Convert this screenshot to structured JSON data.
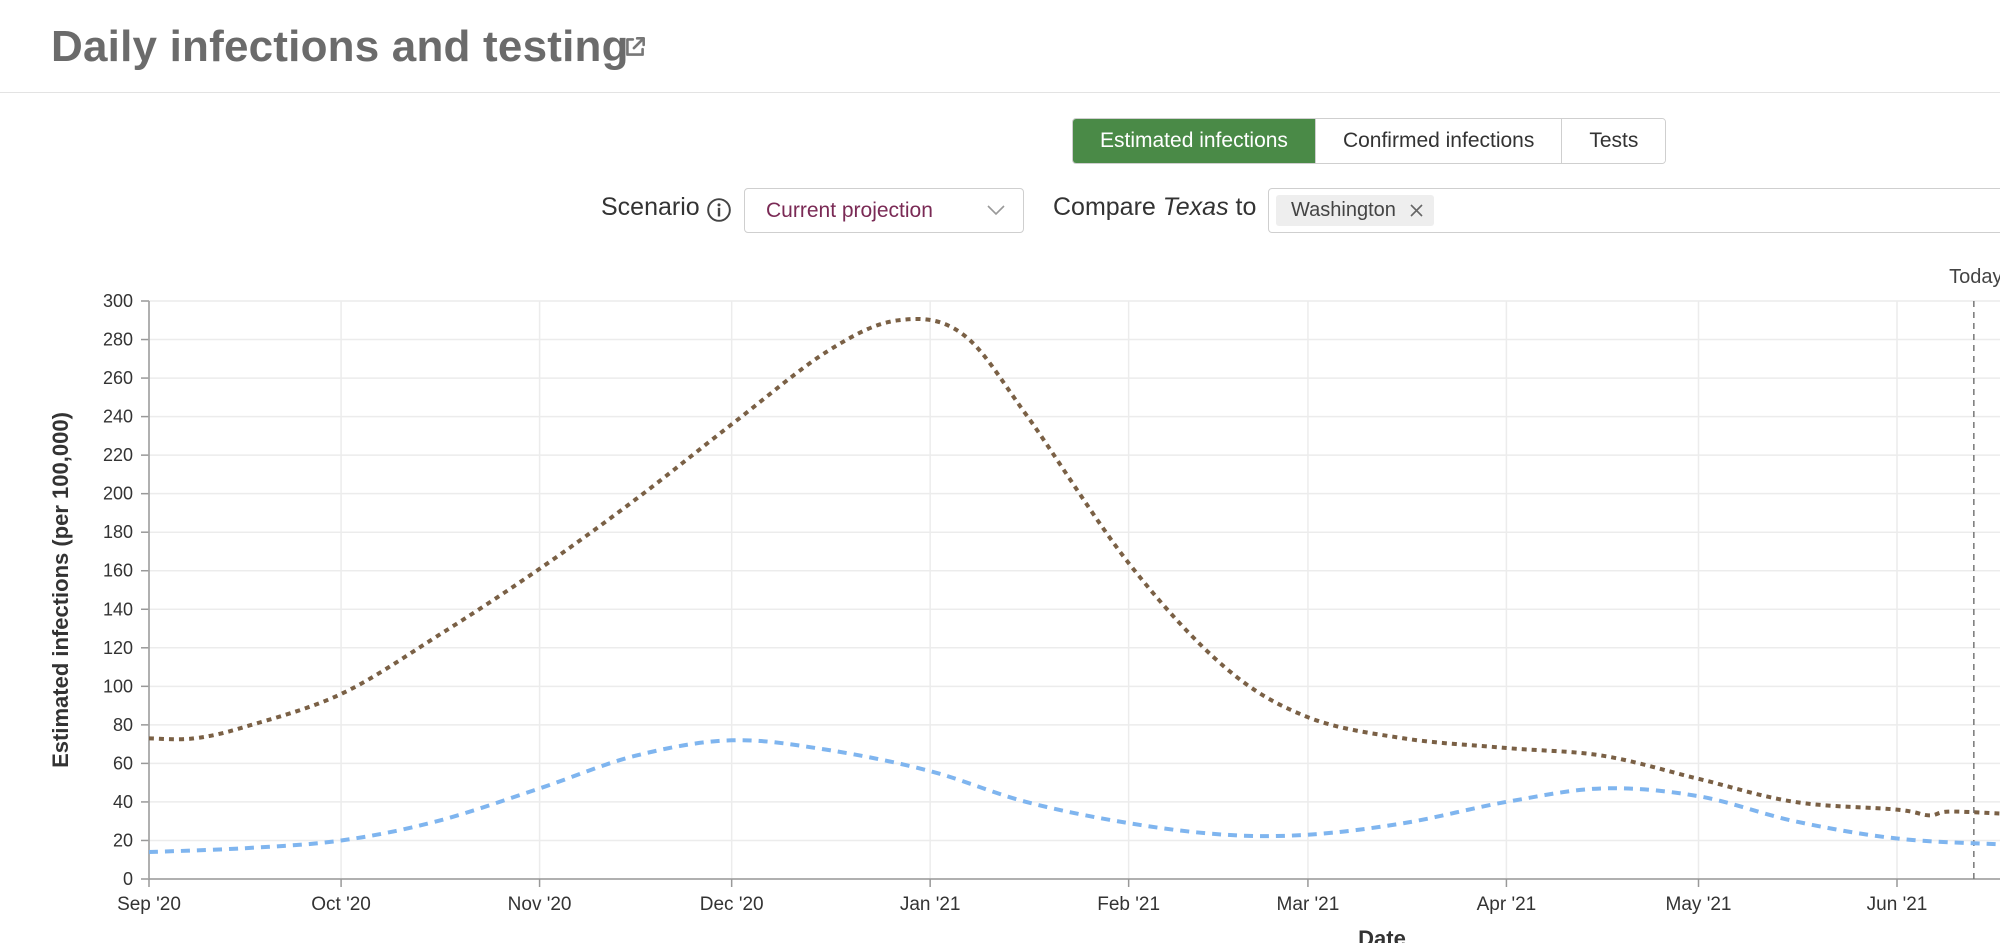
{
  "header": {
    "title": "Daily infections and testing"
  },
  "tabs": [
    {
      "label": "Estimated infections",
      "active": true
    },
    {
      "label": "Confirmed infections",
      "active": false
    },
    {
      "label": "Tests",
      "active": false
    }
  ],
  "controls": {
    "scenario_label": "Scenario",
    "scenario_value": "Current projection",
    "compare_prefix": "Compare",
    "compare_location": "Texas",
    "compare_suffix": "to",
    "compare_chips": [
      "Washington"
    ]
  },
  "icons": {
    "title_link": "external-link-icon",
    "scenario_info": "info-icon",
    "select_chevron": "chevron-down-icon",
    "chip_remove": "close-icon"
  },
  "chart_data": {
    "type": "line",
    "title": "",
    "xlabel": "Date",
    "ylabel": "Estimated infections (per 100,000)",
    "ylim": [
      0,
      300
    ],
    "yticks": [
      0,
      20,
      40,
      60,
      80,
      100,
      120,
      140,
      160,
      180,
      200,
      220,
      240,
      260,
      280,
      300
    ],
    "xlim": [
      "2020-09-01",
      "2021-06-21"
    ],
    "xticks": [
      {
        "date": "2020-09-01",
        "label": "Sep '20"
      },
      {
        "date": "2020-10-01",
        "label": "Oct '20"
      },
      {
        "date": "2020-11-01",
        "label": "Nov '20"
      },
      {
        "date": "2020-12-01",
        "label": "Dec '20"
      },
      {
        "date": "2021-01-01",
        "label": "Jan '21"
      },
      {
        "date": "2021-02-01",
        "label": "Feb '21"
      },
      {
        "date": "2021-03-01",
        "label": "Mar '21"
      },
      {
        "date": "2021-04-01",
        "label": "Apr '21"
      },
      {
        "date": "2021-05-01",
        "label": "May '21"
      },
      {
        "date": "2021-06-01",
        "label": "Jun '21"
      }
    ],
    "grid": true,
    "legend": "none",
    "annotations": [
      {
        "label": "Today",
        "x": "2021-06-13"
      }
    ],
    "series": [
      {
        "color": "#7a6045",
        "style": "dotted",
        "points": [
          {
            "x": "2020-09-01",
            "y": 73
          },
          {
            "x": "2020-09-08",
            "y": 73
          },
          {
            "x": "2020-09-16",
            "y": 79
          },
          {
            "x": "2020-10-01",
            "y": 96
          },
          {
            "x": "2020-10-16",
            "y": 126
          },
          {
            "x": "2020-11-01",
            "y": 161
          },
          {
            "x": "2020-11-16",
            "y": 197
          },
          {
            "x": "2020-12-01",
            "y": 236
          },
          {
            "x": "2020-12-16",
            "y": 274
          },
          {
            "x": "2020-12-27",
            "y": 290
          },
          {
            "x": "2021-01-06",
            "y": 283
          },
          {
            "x": "2021-01-16",
            "y": 241
          },
          {
            "x": "2021-02-01",
            "y": 164
          },
          {
            "x": "2021-02-16",
            "y": 110
          },
          {
            "x": "2021-03-01",
            "y": 84
          },
          {
            "x": "2021-03-16",
            "y": 73
          },
          {
            "x": "2021-04-01",
            "y": 68
          },
          {
            "x": "2021-04-16",
            "y": 64
          },
          {
            "x": "2021-05-01",
            "y": 52
          },
          {
            "x": "2021-05-16",
            "y": 40
          },
          {
            "x": "2021-06-01",
            "y": 36
          },
          {
            "x": "2021-06-06",
            "y": 33
          },
          {
            "x": "2021-06-09",
            "y": 35
          },
          {
            "x": "2021-06-21",
            "y": 34
          }
        ]
      },
      {
        "color": "#7fb5ef",
        "style": "dashed",
        "points": [
          {
            "x": "2020-09-01",
            "y": 14
          },
          {
            "x": "2020-09-16",
            "y": 16
          },
          {
            "x": "2020-10-01",
            "y": 20
          },
          {
            "x": "2020-10-16",
            "y": 30
          },
          {
            "x": "2020-11-01",
            "y": 47
          },
          {
            "x": "2020-11-16",
            "y": 64
          },
          {
            "x": "2020-12-01",
            "y": 72
          },
          {
            "x": "2020-12-16",
            "y": 67
          },
          {
            "x": "2021-01-01",
            "y": 56
          },
          {
            "x": "2021-01-16",
            "y": 40
          },
          {
            "x": "2021-02-01",
            "y": 29
          },
          {
            "x": "2021-02-16",
            "y": 23
          },
          {
            "x": "2021-03-01",
            "y": 23
          },
          {
            "x": "2021-03-16",
            "y": 29
          },
          {
            "x": "2021-04-01",
            "y": 40
          },
          {
            "x": "2021-04-16",
            "y": 47
          },
          {
            "x": "2021-05-01",
            "y": 43
          },
          {
            "x": "2021-05-16",
            "y": 30
          },
          {
            "x": "2021-06-01",
            "y": 21
          },
          {
            "x": "2021-06-21",
            "y": 18
          }
        ]
      }
    ]
  }
}
